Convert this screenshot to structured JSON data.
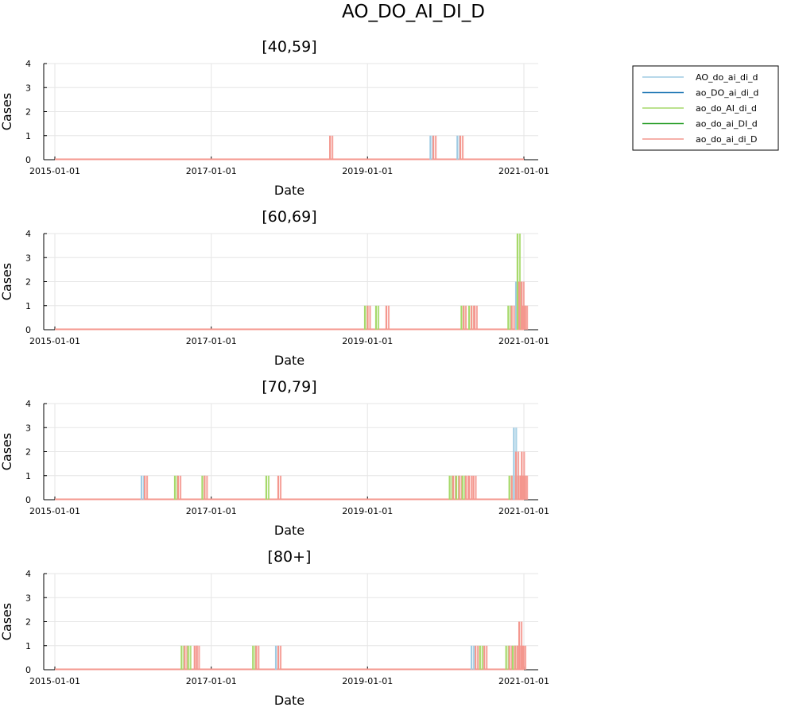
{
  "figure": {
    "title": "AO_DO_AI_DI_D"
  },
  "chart_data": {
    "type": "line",
    "xlabel": "Date",
    "ylabel": "Cases",
    "xlim": [
      "2015-01-01",
      "2021-01-01"
    ],
    "ylim": [
      0,
      4
    ],
    "xticks": [
      "2015-01-01",
      "2017-01-01",
      "2019-01-01",
      "2021-01-01"
    ],
    "yticks": [
      0,
      1,
      2,
      3,
      4
    ],
    "grid": true,
    "legend_position": "top-right",
    "series": [
      {
        "name": "AO_do_ai_di_d",
        "color": "#9fcbe3"
      },
      {
        "name": "ao_DO_ai_di_d",
        "color": "#1f77b4"
      },
      {
        "name": "ao_do_AI_di_d",
        "color": "#a6d96a"
      },
      {
        "name": "ao_do_ai_DI_d",
        "color": "#2ca02c"
      },
      {
        "name": "ao_do_ai_di_D",
        "color": "#f4978e"
      }
    ],
    "panels": [
      {
        "title": "[40,59]",
        "spikes": [
          {
            "date": "2018-07-10",
            "series": 4,
            "value": 1
          },
          {
            "date": "2019-10-22",
            "series": 0,
            "value": 1
          },
          {
            "date": "2019-11-05",
            "series": 4,
            "value": 1
          },
          {
            "date": "2020-02-25",
            "series": 0,
            "value": 1
          },
          {
            "date": "2020-03-10",
            "series": 4,
            "value": 1
          }
        ]
      },
      {
        "title": "[60,69]",
        "spikes": [
          {
            "date": "2018-12-20",
            "series": 2,
            "value": 1
          },
          {
            "date": "2019-01-02",
            "series": 4,
            "value": 1
          },
          {
            "date": "2019-02-10",
            "series": 2,
            "value": 1
          },
          {
            "date": "2019-03-30",
            "series": 4,
            "value": 1
          },
          {
            "date": "2020-03-15",
            "series": 2,
            "value": 1
          },
          {
            "date": "2020-03-25",
            "series": 4,
            "value": 1
          },
          {
            "date": "2020-04-20",
            "series": 2,
            "value": 1
          },
          {
            "date": "2020-05-01",
            "series": 4,
            "value": 1
          },
          {
            "date": "2020-05-15",
            "series": 4,
            "value": 1
          },
          {
            "date": "2020-10-20",
            "series": 2,
            "value": 1
          },
          {
            "date": "2020-11-05",
            "series": 4,
            "value": 1
          },
          {
            "date": "2020-11-25",
            "series": 0,
            "value": 2
          },
          {
            "date": "2020-12-02",
            "series": 2,
            "value": 4
          },
          {
            "date": "2020-12-10",
            "series": 4,
            "value": 2
          },
          {
            "date": "2020-12-20",
            "series": 4,
            "value": 2
          },
          {
            "date": "2020-12-28",
            "series": 4,
            "value": 1
          },
          {
            "date": "2021-01-05",
            "series": 4,
            "value": 1
          }
        ]
      },
      {
        "title": "[70,79]",
        "spikes": [
          {
            "date": "2016-02-10",
            "series": 0,
            "value": 1
          },
          {
            "date": "2016-02-25",
            "series": 4,
            "value": 1
          },
          {
            "date": "2016-07-15",
            "series": 2,
            "value": 1
          },
          {
            "date": "2016-07-30",
            "series": 4,
            "value": 1
          },
          {
            "date": "2016-11-20",
            "series": 2,
            "value": 1
          },
          {
            "date": "2016-12-01",
            "series": 4,
            "value": 1
          },
          {
            "date": "2017-09-15",
            "series": 2,
            "value": 1
          },
          {
            "date": "2017-11-10",
            "series": 4,
            "value": 1
          },
          {
            "date": "2020-01-20",
            "series": 2,
            "value": 1
          },
          {
            "date": "2020-02-05",
            "series": 4,
            "value": 1
          },
          {
            "date": "2020-02-20",
            "series": 2,
            "value": 1
          },
          {
            "date": "2020-03-05",
            "series": 4,
            "value": 1
          },
          {
            "date": "2020-03-20",
            "series": 2,
            "value": 1
          },
          {
            "date": "2020-04-05",
            "series": 4,
            "value": 1
          },
          {
            "date": "2020-04-20",
            "series": 4,
            "value": 1
          },
          {
            "date": "2020-05-10",
            "series": 4,
            "value": 1
          },
          {
            "date": "2020-10-25",
            "series": 2,
            "value": 1
          },
          {
            "date": "2020-11-05",
            "series": 4,
            "value": 1
          },
          {
            "date": "2020-11-15",
            "series": 0,
            "value": 3
          },
          {
            "date": "2020-11-25",
            "series": 4,
            "value": 2
          },
          {
            "date": "2020-12-05",
            "series": 4,
            "value": 1
          },
          {
            "date": "2020-12-15",
            "series": 4,
            "value": 1
          },
          {
            "date": "2020-12-22",
            "series": 4,
            "value": 2
          },
          {
            "date": "2020-12-30",
            "series": 4,
            "value": 1
          },
          {
            "date": "2021-01-05",
            "series": 4,
            "value": 1
          }
        ]
      },
      {
        "title": "[80+]",
        "spikes": [
          {
            "date": "2016-08-15",
            "series": 2,
            "value": 1
          },
          {
            "date": "2016-08-30",
            "series": 4,
            "value": 1
          },
          {
            "date": "2016-09-15",
            "series": 2,
            "value": 1
          },
          {
            "date": "2016-10-15",
            "series": 4,
            "value": 1
          },
          {
            "date": "2016-10-25",
            "series": 4,
            "value": 1
          },
          {
            "date": "2017-07-15",
            "series": 2,
            "value": 1
          },
          {
            "date": "2017-07-30",
            "series": 4,
            "value": 1
          },
          {
            "date": "2017-10-30",
            "series": 0,
            "value": 1
          },
          {
            "date": "2017-11-10",
            "series": 4,
            "value": 1
          },
          {
            "date": "2020-05-01",
            "series": 0,
            "value": 1
          },
          {
            "date": "2020-05-20",
            "series": 4,
            "value": 1
          },
          {
            "date": "2020-06-10",
            "series": 2,
            "value": 1
          },
          {
            "date": "2020-06-30",
            "series": 4,
            "value": 1
          },
          {
            "date": "2020-10-10",
            "series": 2,
            "value": 1
          },
          {
            "date": "2020-10-25",
            "series": 4,
            "value": 1
          },
          {
            "date": "2020-11-10",
            "series": 2,
            "value": 1
          },
          {
            "date": "2020-11-20",
            "series": 4,
            "value": 1
          },
          {
            "date": "2020-12-01",
            "series": 4,
            "value": 1
          },
          {
            "date": "2020-12-10",
            "series": 4,
            "value": 2
          },
          {
            "date": "2020-12-20",
            "series": 4,
            "value": 1
          },
          {
            "date": "2020-12-28",
            "series": 4,
            "value": 1
          }
        ]
      }
    ]
  }
}
